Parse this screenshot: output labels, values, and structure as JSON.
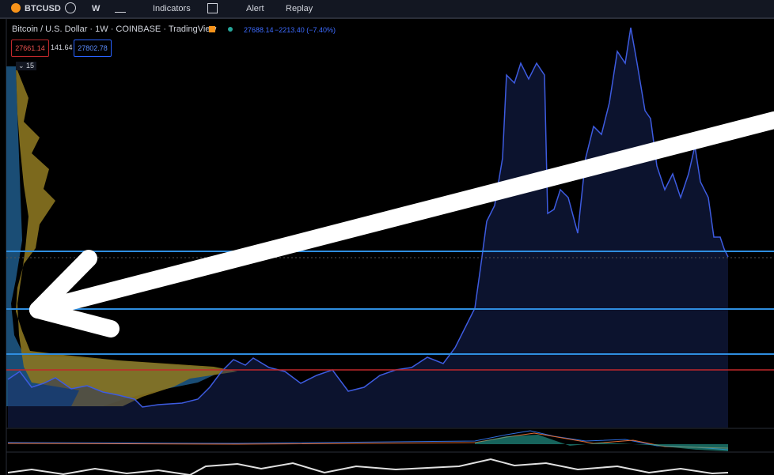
{
  "toolbar": {
    "symbol": "BTCUSD",
    "interval": "W",
    "indicators": "Indicators",
    "alert": "Alert",
    "replay": "Replay"
  },
  "legend": {
    "title": "Bitcoin / U.S. Dollar · 1W · COINBASE · TradingView",
    "last": "27688.14",
    "change": "−2213.40 (−7.40%)"
  },
  "order": {
    "sell": "27661.14",
    "spread": "141.64",
    "buy": "27802.78"
  },
  "indicator_count": "15"
}
